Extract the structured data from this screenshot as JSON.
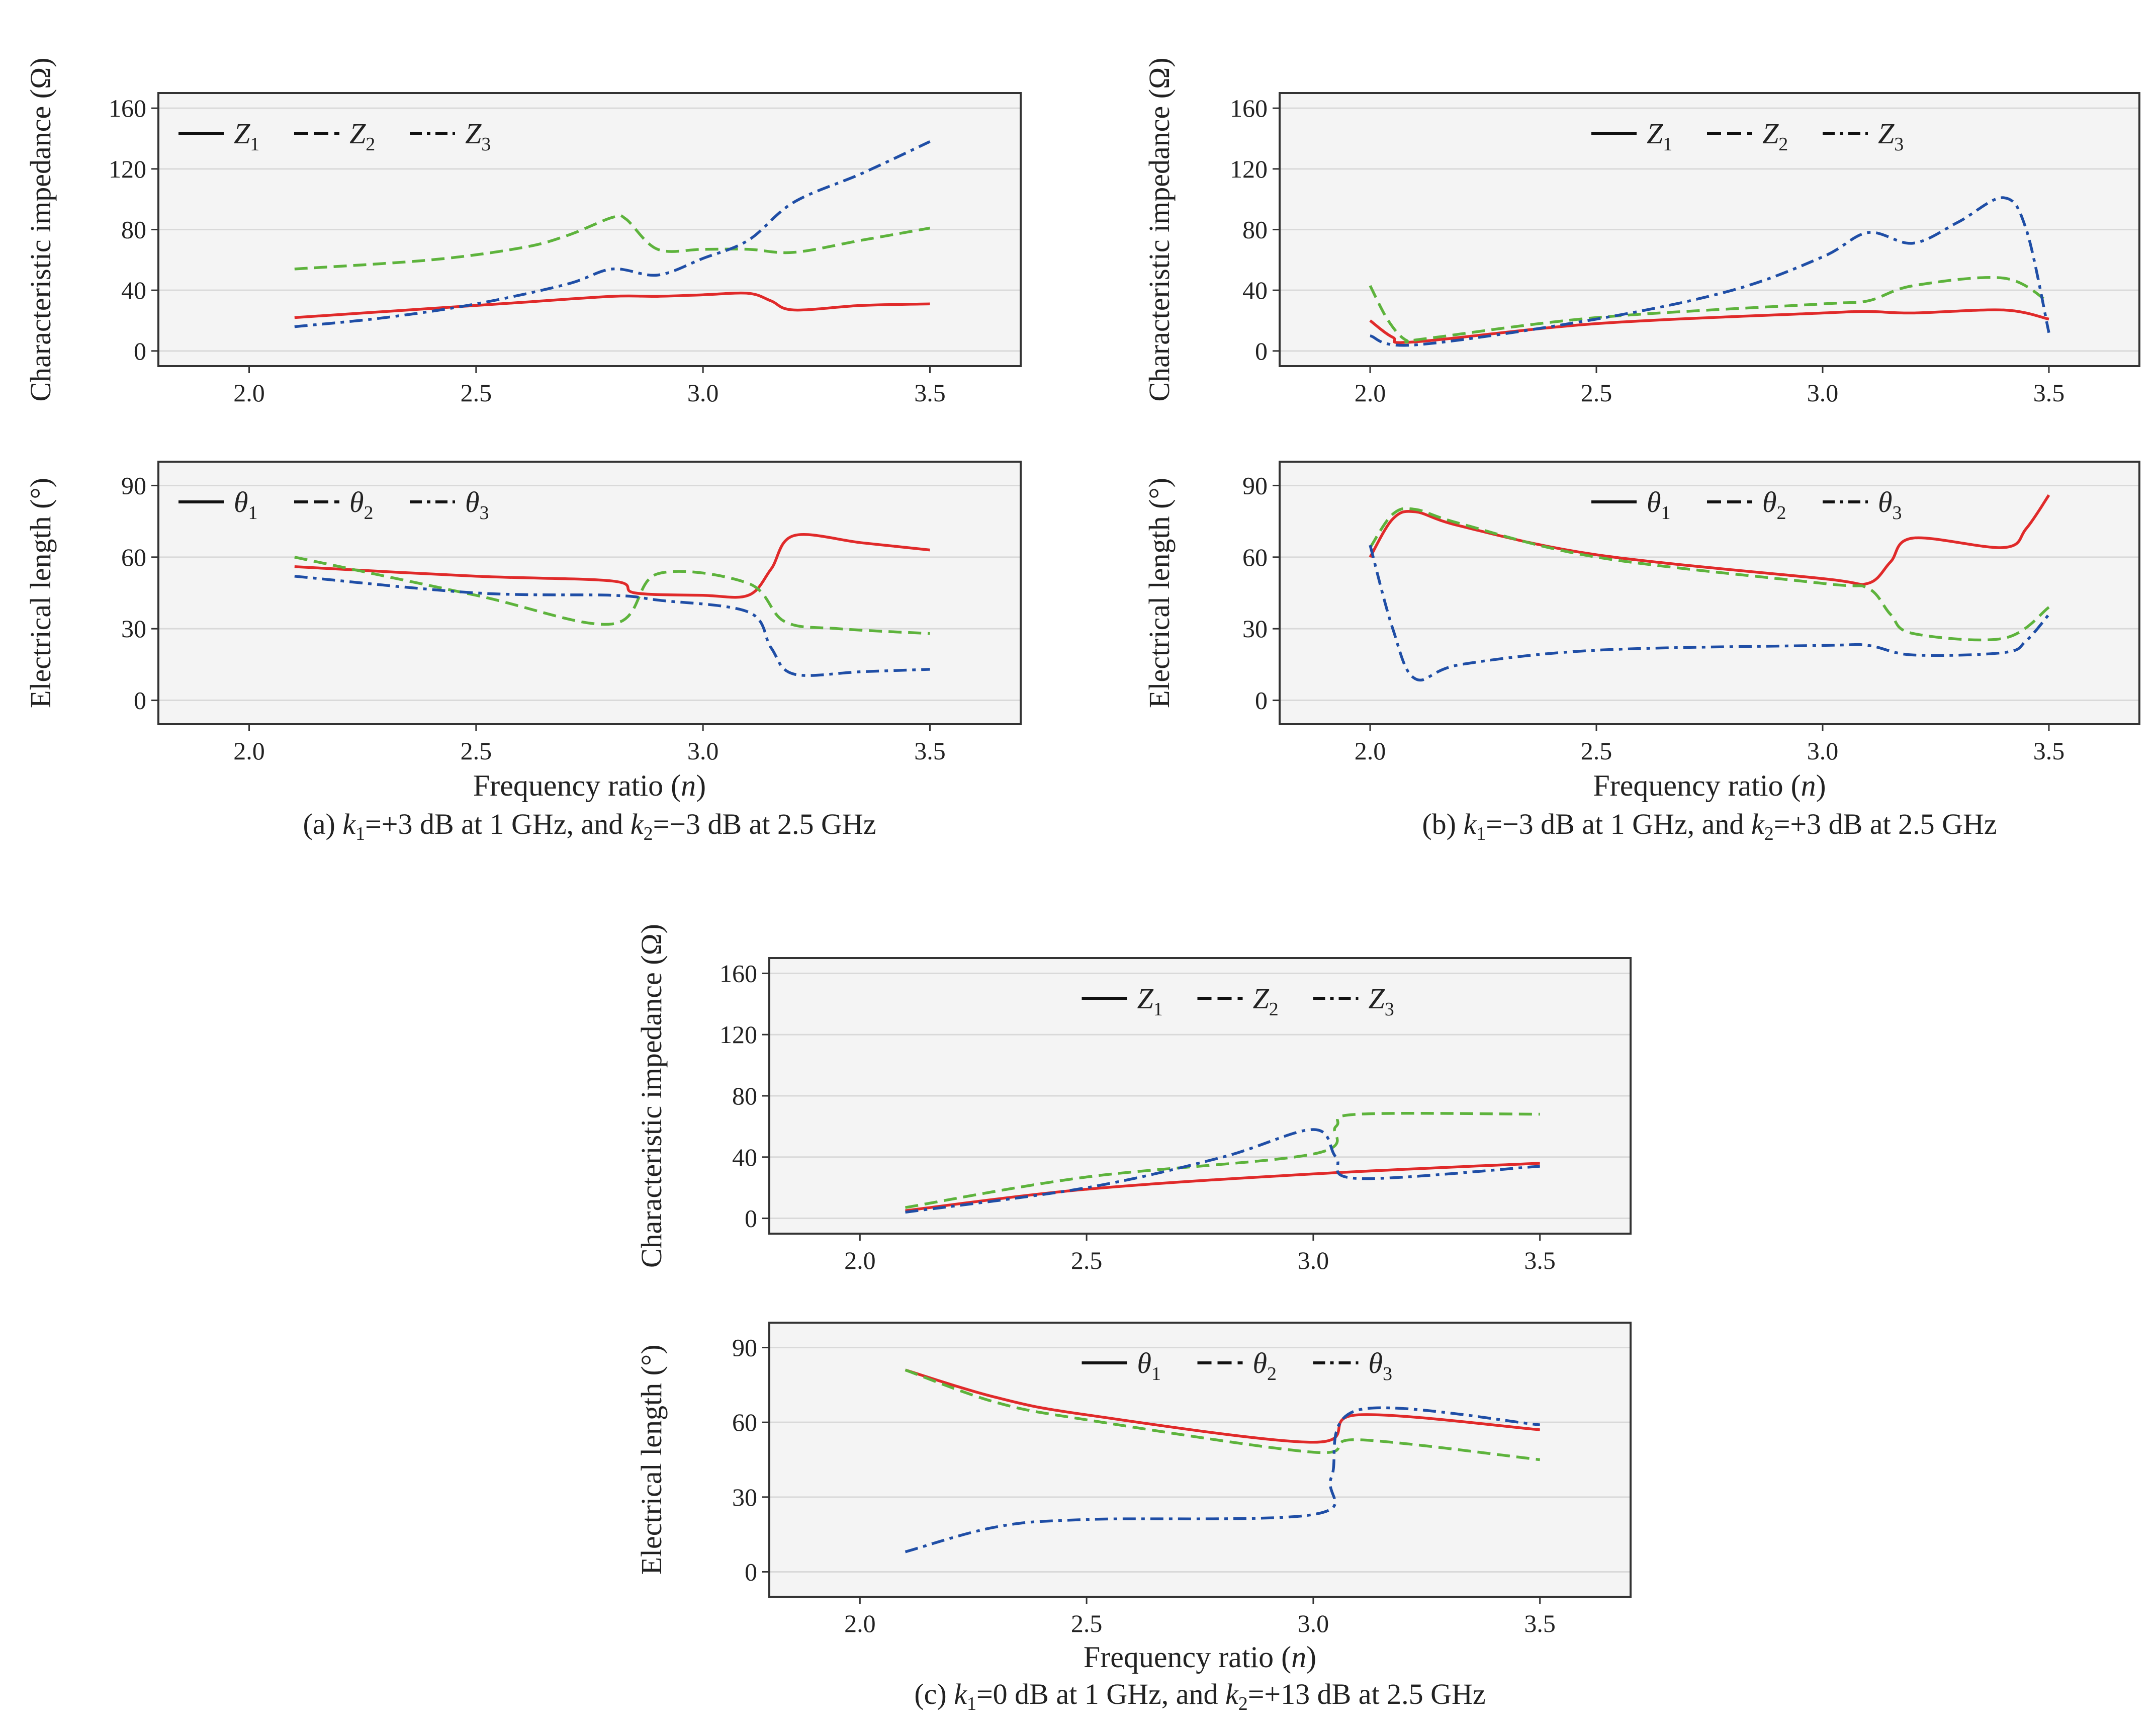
{
  "colors": {
    "z1": "#e02a2a",
    "z2": "#5db33c",
    "z3": "#1f4ea6",
    "grid": "#d9d9d9",
    "frame": "#333333",
    "panel": "#f4f4f4"
  },
  "chart_data": [
    {
      "id": "a",
      "type": "line",
      "caption": {
        "pre": "(a) ",
        "k1": "k",
        "s1": "1",
        "mid": "=+3 dB at 1 GHz, and ",
        "k2": "k",
        "s2": "2",
        "post": "=−3 dB at 2.5 GHz"
      },
      "xlabel": {
        "pre": "Frequency ratio (",
        "sym": "n",
        "post": ")"
      },
      "xlim": [
        1.8,
        3.7
      ],
      "xticks": [
        "2.0",
        "2.5",
        "3.0",
        "3.5"
      ],
      "top": {
        "ylabel": "Characteristic impedance (Ω)",
        "ylim": [
          -10,
          170
        ],
        "yticks": [
          "0",
          "40",
          "80",
          "120",
          "160"
        ],
        "legend_position": "top-left",
        "legend": [
          {
            "sym": "Z",
            "sub": "1",
            "style": "solid"
          },
          {
            "sym": "Z",
            "sub": "2",
            "style": "dashed"
          },
          {
            "sym": "Z",
            "sub": "3",
            "style": "dashdot"
          }
        ],
        "series": [
          {
            "name": "Z1",
            "x": [
              2.1,
              2.4,
              2.6,
              2.8,
              2.9,
              3.0,
              3.1,
              3.15,
              3.2,
              3.35,
              3.5
            ],
            "y": [
              22,
              28,
              32,
              36,
              36,
              37,
              38,
              33,
              27,
              30,
              31
            ]
          },
          {
            "name": "Z2",
            "x": [
              2.1,
              2.4,
              2.6,
              2.7,
              2.8,
              2.83,
              2.9,
              3.0,
              3.1,
              3.2,
              3.35,
              3.5
            ],
            "y": [
              54,
              60,
              68,
              76,
              88,
              87,
              67,
              67,
              67,
              65,
              73,
              81
            ]
          },
          {
            "name": "Z3",
            "x": [
              2.1,
              2.3,
              2.5,
              2.7,
              2.8,
              2.9,
              3.0,
              3.1,
              3.2,
              3.35,
              3.5
            ],
            "y": [
              16,
              22,
              31,
              44,
              54,
              50,
              61,
              73,
              98,
              117,
              138
            ]
          }
        ]
      },
      "bottom": {
        "ylabel": "Electrical length (°)",
        "ylim": [
          -10,
          100
        ],
        "yticks": [
          "0",
          "30",
          "60",
          "90"
        ],
        "legend_position": "top-left",
        "legend": [
          {
            "sym": "θ",
            "sub": "1",
            "style": "solid"
          },
          {
            "sym": "θ",
            "sub": "2",
            "style": "dashed"
          },
          {
            "sym": "θ",
            "sub": "3",
            "style": "dashdot"
          }
        ],
        "series": [
          {
            "name": "θ1",
            "x": [
              2.1,
              2.5,
              2.8,
              2.85,
              3.0,
              3.1,
              3.15,
              3.2,
              3.35,
              3.5
            ],
            "y": [
              56,
              52,
              50,
              45,
              44,
              44,
              55,
              69,
              66,
              63
            ]
          },
          {
            "name": "θ2",
            "x": [
              2.1,
              2.5,
              2.8,
              2.9,
              3.1,
              3.18,
              3.3,
              3.5
            ],
            "y": [
              60,
              44,
              32,
              53,
              49,
              33,
              30,
              28
            ]
          },
          {
            "name": "θ3",
            "x": [
              2.1,
              2.5,
              2.8,
              2.9,
              3.1,
              3.15,
              3.2,
              3.35,
              3.5
            ],
            "y": [
              52,
              45,
              44,
              42,
              37,
              22,
              11,
              12,
              13
            ]
          }
        ]
      }
    },
    {
      "id": "b",
      "type": "line",
      "caption": {
        "pre": "(b) ",
        "k1": "k",
        "s1": "1",
        "mid": "=−3 dB at 1 GHz, and ",
        "k2": "k",
        "s2": "2",
        "post": "=+3 dB at 2.5 GHz"
      },
      "xlabel": {
        "pre": "Frequency ratio (",
        "sym": "n",
        "post": ")"
      },
      "xlim": [
        1.8,
        3.7
      ],
      "xticks": [
        "2.0",
        "2.5",
        "3.0",
        "3.5"
      ],
      "top": {
        "ylabel": "Characteristic impedance (Ω)",
        "ylim": [
          -10,
          170
        ],
        "yticks": [
          "0",
          "40",
          "80",
          "120",
          "160"
        ],
        "legend_position": "top-center",
        "legend": [
          {
            "sym": "Z",
            "sub": "1",
            "style": "solid"
          },
          {
            "sym": "Z",
            "sub": "2",
            "style": "dashed"
          },
          {
            "sym": "Z",
            "sub": "3",
            "style": "dashdot"
          }
        ],
        "series": [
          {
            "name": "Z1",
            "x": [
              2.0,
              2.05,
              2.1,
              2.5,
              3.0,
              3.1,
              3.2,
              3.4,
              3.5
            ],
            "y": [
              20,
              9,
              6,
              18,
              25,
              26,
              25,
              27,
              21
            ]
          },
          {
            "name": "Z2",
            "x": [
              2.0,
              2.04,
              2.08,
              2.12,
              2.5,
              3.0,
              3.1,
              3.2,
              3.4,
              3.5
            ],
            "y": [
              43,
              20,
              7,
              8,
              22,
              31,
              33,
              43,
              48,
              32
            ]
          },
          {
            "name": "Z3",
            "x": [
              2.0,
              2.1,
              2.5,
              2.8,
              3.0,
              3.1,
              3.2,
              3.3,
              3.4,
              3.45,
              3.5
            ],
            "y": [
              10,
              4,
              21,
              40,
              62,
              78,
              71,
              85,
              101,
              80,
              12
            ]
          }
        ]
      },
      "bottom": {
        "ylabel": "Electrical length (°)",
        "ylim": [
          -10,
          100
        ],
        "yticks": [
          "0",
          "30",
          "60",
          "90"
        ],
        "legend_position": "top-center",
        "legend": [
          {
            "sym": "θ",
            "sub": "1",
            "style": "solid"
          },
          {
            "sym": "θ",
            "sub": "2",
            "style": "dashed"
          },
          {
            "sym": "θ",
            "sub": "3",
            "style": "dashdot"
          }
        ],
        "series": [
          {
            "name": "θ1",
            "x": [
              2.0,
              2.05,
              2.1,
              2.2,
              2.5,
              3.0,
              3.1,
              3.15,
              3.2,
              3.4,
              3.45,
              3.5
            ],
            "y": [
              60,
              76,
              79,
              73,
              61,
              51,
              49,
              58,
              68,
              64,
              72,
              86
            ]
          },
          {
            "name": "θ2",
            "x": [
              2.0,
              2.05,
              2.1,
              2.2,
              2.5,
              3.0,
              3.1,
              3.15,
              3.2,
              3.4,
              3.5
            ],
            "y": [
              64,
              78,
              80,
              74,
              60,
              49,
              47,
              36,
              28,
              26,
              39
            ]
          },
          {
            "name": "θ3",
            "x": [
              2.0,
              2.05,
              2.1,
              2.2,
              2.5,
              3.0,
              3.1,
              3.2,
              3.4,
              3.45,
              3.5
            ],
            "y": [
              65,
              30,
              9,
              15,
              21,
              23,
              23,
              19,
              20,
              25,
              36
            ]
          }
        ]
      }
    },
    {
      "id": "c",
      "type": "line",
      "caption": {
        "pre": "(c) ",
        "k1": "k",
        "s1": "1",
        "mid": "=0 dB at 1 GHz, and ",
        "k2": "k",
        "s2": "2",
        "post": "=+13 dB at 2.5 GHz"
      },
      "xlabel": {
        "pre": "Frequency ratio (",
        "sym": "n",
        "post": ")"
      },
      "xlim": [
        1.8,
        3.7
      ],
      "xticks": [
        "2.0",
        "2.5",
        "3.0",
        "3.5"
      ],
      "top": {
        "ylabel": "Characteristic impedance (Ω)",
        "ylim": [
          -10,
          170
        ],
        "yticks": [
          "0",
          "40",
          "80",
          "120",
          "160"
        ],
        "legend_position": "top-center",
        "legend": [
          {
            "sym": "Z",
            "sub": "1",
            "style": "solid"
          },
          {
            "sym": "Z",
            "sub": "2",
            "style": "dashed"
          },
          {
            "sym": "Z",
            "sub": "3",
            "style": "dashdot"
          }
        ],
        "series": [
          {
            "name": "Z1",
            "x": [
              2.1,
              2.5,
              3.0,
              3.5
            ],
            "y": [
              5,
              19,
              29,
              36
            ]
          },
          {
            "name": "Z2",
            "x": [
              2.1,
              2.5,
              3.0,
              3.05,
              3.1,
              3.5
            ],
            "y": [
              7,
              27,
              42,
              60,
              68,
              68
            ]
          },
          {
            "name": "Z3",
            "x": [
              2.1,
              2.5,
              2.8,
              3.0,
              3.05,
              3.1,
              3.5
            ],
            "y": [
              4,
              20,
              40,
              58,
              40,
              26,
              34
            ]
          }
        ]
      },
      "bottom": {
        "ylabel": "Electrical length (°)",
        "ylim": [
          -10,
          100
        ],
        "yticks": [
          "0",
          "30",
          "60",
          "90"
        ],
        "legend_position": "top-center",
        "legend": [
          {
            "sym": "θ",
            "sub": "1",
            "style": "solid"
          },
          {
            "sym": "θ",
            "sub": "2",
            "style": "dashed"
          },
          {
            "sym": "θ",
            "sub": "3",
            "style": "dashdot"
          }
        ],
        "series": [
          {
            "name": "θ1",
            "x": [
              2.1,
              2.3,
              2.5,
              3.0,
              3.1,
              3.5
            ],
            "y": [
              81,
              70,
              63,
              52,
              63,
              57
            ]
          },
          {
            "name": "θ2",
            "x": [
              2.1,
              2.3,
              2.5,
              3.0,
              3.1,
              3.5
            ],
            "y": [
              81,
              68,
              61,
              48,
              53,
              45
            ]
          },
          {
            "name": "θ3",
            "x": [
              2.1,
              2.3,
              2.5,
              3.0,
              3.04,
              3.1,
              3.5
            ],
            "y": [
              8,
              18,
              21,
              23,
              38,
              65,
              59
            ]
          }
        ]
      }
    }
  ]
}
